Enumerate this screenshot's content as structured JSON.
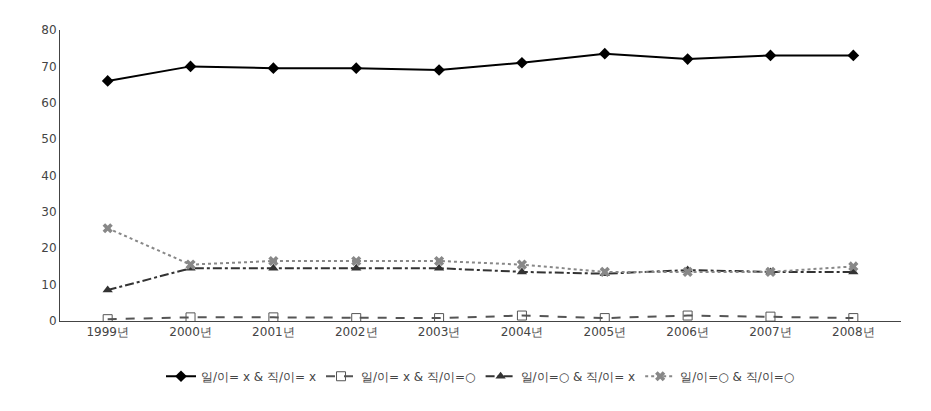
{
  "chart_data": {
    "type": "line",
    "categories": [
      "1999년",
      "2000년",
      "2001년",
      "2002년",
      "2003년",
      "2004년",
      "2005년",
      "2006년",
      "2007년",
      "2008년"
    ],
    "series": [
      {
        "name": "일/이= x & 직/이= x",
        "color": "#000000",
        "marker": "diamond",
        "line_style": "solid",
        "values": [
          66.0,
          70.0,
          69.5,
          69.5,
          69.0,
          71.0,
          73.5,
          72.0,
          73.0,
          73.0
        ]
      },
      {
        "name": "일/이= x & 직/이=○",
        "color": "#555555",
        "marker": "square-open",
        "line_style": "dash",
        "values": [
          0.5,
          1.0,
          1.0,
          0.8,
          0.8,
          1.5,
          0.8,
          1.5,
          1.2,
          0.8
        ]
      },
      {
        "name": "일/이=○ & 직/이= x",
        "color": "#333333",
        "marker": "triangle-up",
        "line_style": "dashdot",
        "values": [
          8.5,
          14.5,
          14.5,
          14.5,
          14.5,
          13.5,
          13.0,
          14.0,
          13.5,
          13.5
        ]
      },
      {
        "name": "일/이=○ & 직/이=○",
        "color": "#888888",
        "marker": "x",
        "line_style": "dot",
        "values": [
          25.5,
          15.5,
          16.5,
          16.5,
          16.5,
          15.5,
          13.5,
          13.5,
          13.5,
          15.0
        ]
      }
    ],
    "ylim": [
      0,
      80
    ],
    "yticks": [
      0,
      10,
      20,
      30,
      40,
      50,
      60,
      70,
      80
    ],
    "grid": false,
    "legend": "bottom"
  }
}
